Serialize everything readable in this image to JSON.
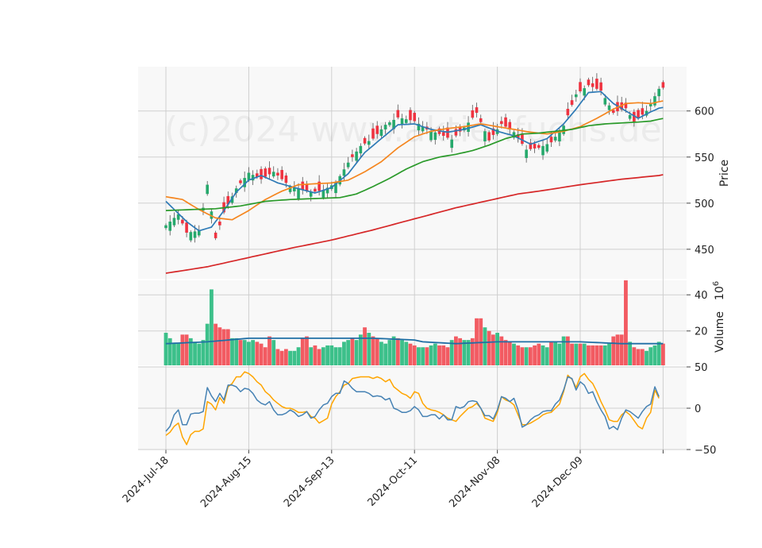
{
  "watermark": "(c)2024 www.aktienfuchs.de",
  "colors": {
    "up": "#26a96c",
    "down": "#ef3340",
    "vol_up": "#3cc08a",
    "vol_down": "#f25b62",
    "sma_fast": "#2e7ab6",
    "sma_mid": "#f5861f",
    "sma_slow": "#2a9a2a",
    "sma_long": "#d62728",
    "vol_ma": "#1f6fa5",
    "osc_a": "#4682b4",
    "osc_b": "#ffa500",
    "panel_bg": "#f8f8f8",
    "grid": "#cfcfcf"
  },
  "chart_data": [
    {
      "type": "candlestick",
      "panel": "price",
      "ylabel": "Price",
      "ylim": [
        418,
        648
      ],
      "yticks": [
        450,
        500,
        550,
        600
      ],
      "grid": true,
      "x_tick_labels": [
        "2024-Jul-18",
        "2024-Aug-15",
        "2024-Sep-13",
        "2024-Oct-11",
        "2024-Nov-08",
        "2024-Dec-09"
      ],
      "x_tick_index": [
        0,
        20,
        40,
        60,
        80,
        100
      ],
      "series": [
        {
          "role": "candles",
          "close_anchors": [
            [
              0,
              476
            ],
            [
              3,
              488
            ],
            [
              5,
              468
            ],
            [
              8,
              470
            ],
            [
              10,
              520
            ],
            [
              12,
              462
            ],
            [
              14,
              490
            ],
            [
              17,
              516
            ],
            [
              20,
              533
            ],
            [
              23,
              526
            ],
            [
              26,
              534
            ],
            [
              30,
              518
            ],
            [
              35,
              512
            ],
            [
              38,
              514
            ],
            [
              41,
              522
            ],
            [
              44,
              544
            ],
            [
              47,
              562
            ],
            [
              50,
              570
            ],
            [
              53,
              585
            ],
            [
              56,
              593
            ],
            [
              60,
              589
            ],
            [
              63,
              580
            ],
            [
              66,
              575
            ],
            [
              69,
              569
            ],
            [
              72,
              582
            ],
            [
              75,
              598
            ],
            [
              78,
              568
            ],
            [
              81,
              586
            ],
            [
              84,
              577
            ],
            [
              87,
              558
            ],
            [
              90,
              560
            ],
            [
              93,
              566
            ],
            [
              96,
              584
            ],
            [
              99,
              618
            ],
            [
              102,
              628
            ],
            [
              105,
              622
            ],
            [
              108,
              598
            ],
            [
              111,
              603
            ],
            [
              113,
              588
            ],
            [
              116,
              600
            ],
            [
              119,
              624
            ]
          ]
        },
        {
          "role": "sma-fast",
          "anchors": [
            [
              0,
              502
            ],
            [
              5,
              480
            ],
            [
              8,
              470
            ],
            [
              11,
              474
            ],
            [
              14,
              492
            ],
            [
              17,
              512
            ],
            [
              20,
              525
            ],
            [
              23,
              530
            ],
            [
              27,
              522
            ],
            [
              31,
              517
            ],
            [
              36,
              511
            ],
            [
              40,
              517
            ],
            [
              44,
              532
            ],
            [
              48,
              555
            ],
            [
              52,
              570
            ],
            [
              56,
              585
            ],
            [
              60,
              586
            ],
            [
              64,
              580
            ],
            [
              68,
              577
            ],
            [
              72,
              580
            ],
            [
              76,
              585
            ],
            [
              80,
              578
            ],
            [
              84,
              573
            ],
            [
              88,
              564
            ],
            [
              92,
              570
            ],
            [
              96,
              586
            ],
            [
              99,
              602
            ],
            [
              102,
              620
            ],
            [
              105,
              621
            ],
            [
              108,
              608
            ],
            [
              111,
              600
            ],
            [
              114,
              592
            ],
            [
              117,
              599
            ],
            [
              119,
              603
            ]
          ]
        },
        {
          "role": "sma-mid",
          "anchors": [
            [
              0,
              507
            ],
            [
              4,
              504
            ],
            [
              8,
              493
            ],
            [
              12,
              484
            ],
            [
              16,
              482
            ],
            [
              20,
              492
            ],
            [
              24,
              504
            ],
            [
              28,
              513
            ],
            [
              32,
              520
            ],
            [
              36,
              521
            ],
            [
              40,
              522
            ],
            [
              44,
              525
            ],
            [
              48,
              534
            ],
            [
              52,
              545
            ],
            [
              56,
              560
            ],
            [
              60,
              572
            ],
            [
              64,
              578
            ],
            [
              68,
              581
            ],
            [
              72,
              583
            ],
            [
              76,
              586
            ],
            [
              80,
              583
            ],
            [
              84,
              580
            ],
            [
              88,
              577
            ],
            [
              92,
              575
            ],
            [
              96,
              578
            ],
            [
              100,
              583
            ],
            [
              104,
              592
            ],
            [
              108,
              602
            ],
            [
              111,
              608
            ],
            [
              114,
              609
            ],
            [
              117,
              608
            ],
            [
              119,
              610
            ]
          ]
        },
        {
          "role": "sma-slow",
          "anchors": [
            [
              0,
              492
            ],
            [
              6,
              493
            ],
            [
              12,
              494
            ],
            [
              18,
              497
            ],
            [
              24,
              502
            ],
            [
              30,
              504
            ],
            [
              36,
              505
            ],
            [
              42,
              506
            ],
            [
              46,
              510
            ],
            [
              50,
              518
            ],
            [
              54,
              527
            ],
            [
              58,
              537
            ],
            [
              62,
              545
            ],
            [
              66,
              550
            ],
            [
              70,
              553
            ],
            [
              74,
              557
            ],
            [
              78,
              563
            ],
            [
              82,
              570
            ],
            [
              86,
              575
            ],
            [
              90,
              576
            ],
            [
              94,
              578
            ],
            [
              98,
              580
            ],
            [
              102,
              584
            ],
            [
              106,
              586
            ],
            [
              110,
              587
            ],
            [
              114,
              588
            ],
            [
              117,
              589
            ],
            [
              119,
              591
            ]
          ]
        },
        {
          "role": "sma-long",
          "anchors": [
            [
              0,
              424
            ],
            [
              10,
              431
            ],
            [
              20,
              441
            ],
            [
              30,
              451
            ],
            [
              40,
              460
            ],
            [
              50,
              471
            ],
            [
              60,
              483
            ],
            [
              70,
              495
            ],
            [
              80,
              505
            ],
            [
              85,
              510
            ],
            [
              90,
              513
            ],
            [
              100,
              520
            ],
            [
              110,
              526
            ],
            [
              119,
              530
            ]
          ]
        }
      ]
    },
    {
      "type": "bar",
      "panel": "volume",
      "ylabel": "Volume",
      "ylabel_exponent": "10^6",
      "ylim": [
        1,
        48
      ],
      "yticks": [
        20,
        40
      ],
      "grid": true,
      "values": [
        19,
        16,
        13,
        13,
        18,
        18,
        16,
        14,
        13,
        15,
        24,
        43,
        24,
        22,
        21,
        21,
        16,
        16,
        15,
        15,
        14,
        15,
        14,
        13,
        11,
        17,
        15,
        10,
        9,
        10,
        9,
        9,
        11,
        16,
        17,
        11,
        12,
        10,
        11,
        12,
        12,
        11,
        11,
        14,
        15,
        16,
        15,
        18,
        22,
        19,
        17,
        16,
        14,
        13,
        15,
        17,
        16,
        15,
        14,
        13,
        12,
        11,
        11,
        11,
        12,
        13,
        12,
        12,
        11,
        15,
        17,
        16,
        15,
        15,
        16,
        27,
        27,
        22,
        20,
        18,
        19,
        17,
        15,
        14,
        13,
        12,
        11,
        11,
        11,
        12,
        13,
        12,
        11,
        14,
        14,
        13,
        17,
        17,
        13,
        13,
        13,
        13,
        12,
        12,
        12,
        12,
        12,
        13,
        17,
        18,
        18,
        48,
        14,
        11,
        10,
        10,
        9,
        11,
        12,
        14,
        13
      ],
      "up": [
        true,
        true,
        true,
        true,
        false,
        false,
        true,
        true,
        true,
        true,
        true,
        true,
        false,
        false,
        false,
        false,
        true,
        true,
        false,
        true,
        true,
        true,
        false,
        false,
        false,
        false,
        true,
        false,
        false,
        false,
        true,
        true,
        true,
        false,
        false,
        true,
        false,
        false,
        true,
        true,
        true,
        true,
        true,
        true,
        true,
        false,
        true,
        true,
        false,
        true,
        false,
        false,
        true,
        true,
        true,
        true,
        false,
        true,
        true,
        false,
        false,
        true,
        true,
        false,
        true,
        true,
        false,
        false,
        false,
        true,
        false,
        false,
        true,
        true,
        false,
        false,
        false,
        true,
        false,
        false,
        true,
        false,
        false,
        false,
        true,
        false,
        false,
        true,
        false,
        false,
        false,
        true,
        true,
        false,
        true,
        true,
        true,
        false,
        false,
        true,
        false,
        true,
        false,
        false,
        false,
        false,
        true,
        true,
        false,
        false,
        false,
        false,
        true,
        false,
        false,
        false,
        true,
        true,
        true,
        true,
        false
      ],
      "series": [
        {
          "role": "volume-average",
          "anchors": [
            [
              0,
              13
            ],
            [
              10,
              14
            ],
            [
              15,
              15
            ],
            [
              20,
              16
            ],
            [
              30,
              16
            ],
            [
              40,
              16
            ],
            [
              50,
              16
            ],
            [
              60,
              15
            ],
            [
              62,
              14
            ],
            [
              70,
              13
            ],
            [
              80,
              14
            ],
            [
              90,
              14
            ],
            [
              100,
              14
            ],
            [
              110,
              13
            ],
            [
              119,
              13
            ]
          ]
        }
      ]
    },
    {
      "type": "line",
      "panel": "oscillator",
      "ylim": [
        -50,
        50
      ],
      "yticks": [
        -50,
        0,
        50
      ],
      "grid": true,
      "series": [
        {
          "role": "oscillator-main",
          "values": [
            -28,
            -22,
            -8,
            -2,
            -20,
            -20,
            -7,
            -6,
            -6,
            -4,
            25,
            15,
            8,
            18,
            10,
            28,
            28,
            26,
            20,
            24,
            23,
            18,
            10,
            6,
            4,
            8,
            -2,
            -8,
            -8,
            -6,
            -2,
            -5,
            -10,
            -8,
            -4,
            -12,
            -10,
            -2,
            4,
            6,
            14,
            18,
            18,
            33,
            30,
            24,
            20,
            20,
            20,
            18,
            14,
            15,
            14,
            10,
            12,
            0,
            -2,
            -5,
            -5,
            -3,
            2,
            -2,
            -10,
            -10,
            -8,
            -8,
            -13,
            -8,
            -14,
            -14,
            2,
            0,
            2,
            8,
            9,
            8,
            0,
            -9,
            -9,
            -13,
            -2,
            14,
            12,
            8,
            12,
            -2,
            -23,
            -20,
            -14,
            -10,
            -8,
            -4,
            -3,
            -3,
            5,
            10,
            22,
            38,
            36,
            22,
            32,
            28,
            18,
            20,
            8,
            -2,
            -10,
            -25,
            -22,
            -26,
            -12,
            -2,
            -4,
            -8,
            -12,
            -4,
            2,
            5,
            26,
            14
          ]
        },
        {
          "role": "oscillator-signal",
          "values": [
            -33,
            -29,
            -22,
            -18,
            -35,
            -44,
            -32,
            -28,
            -28,
            -25,
            8,
            5,
            -2,
            13,
            6,
            26,
            30,
            38,
            38,
            44,
            42,
            38,
            32,
            28,
            20,
            16,
            10,
            6,
            2,
            0,
            0,
            -2,
            -5,
            -5,
            -4,
            -10,
            -12,
            -18,
            -15,
            -12,
            5,
            14,
            20,
            28,
            30,
            36,
            37,
            38,
            38,
            38,
            36,
            38,
            36,
            32,
            35,
            26,
            22,
            18,
            16,
            12,
            20,
            18,
            6,
            0,
            -2,
            -3,
            -5,
            -8,
            -12,
            -14,
            -16,
            -10,
            -5,
            0,
            2,
            6,
            0,
            -12,
            -14,
            -16,
            -5,
            14,
            10,
            8,
            4,
            -8,
            -20,
            -20,
            -18,
            -15,
            -12,
            -8,
            -6,
            -5,
            0,
            5,
            20,
            40,
            35,
            25,
            38,
            42,
            35,
            30,
            20,
            8,
            -2,
            -14,
            -16,
            -16,
            -8,
            -4,
            -8,
            -15,
            -22,
            -25,
            -12,
            -5,
            22,
            12
          ]
        }
      ]
    }
  ]
}
